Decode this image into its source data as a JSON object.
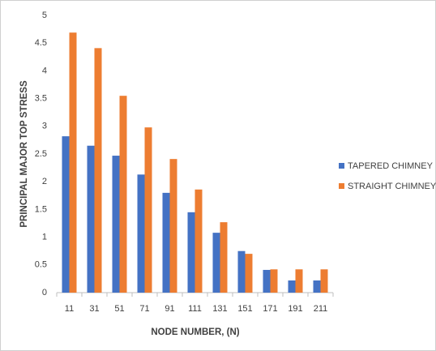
{
  "chart_data": {
    "type": "bar",
    "x_label": "NODE NUMBER, (N)",
    "y_label": "PRINCIPAL MAJOR TOP STRESS",
    "categories": [
      "11",
      "31",
      "51",
      "71",
      "91",
      "111",
      "131",
      "151",
      "171",
      "191",
      "211"
    ],
    "series": [
      {
        "name": "TAPERED CHIMNEY",
        "color": "#4472c4",
        "values": [
          2.82,
          2.65,
          2.47,
          2.13,
          1.8,
          1.45,
          1.08,
          0.75,
          0.41,
          0.22,
          0.22
        ]
      },
      {
        "name": "STRAIGHT CHIMNEY",
        "color": "#ed7d31",
        "values": [
          4.69,
          4.41,
          3.55,
          2.98,
          2.41,
          1.86,
          1.27,
          0.7,
          0.42,
          0.42,
          0.42
        ]
      }
    ],
    "ylim": [
      0,
      5
    ],
    "yticks": [
      0,
      0.5,
      1,
      1.5,
      2,
      2.5,
      3,
      3.5,
      4,
      4.5,
      5
    ],
    "legend": "right",
    "grid": false
  }
}
